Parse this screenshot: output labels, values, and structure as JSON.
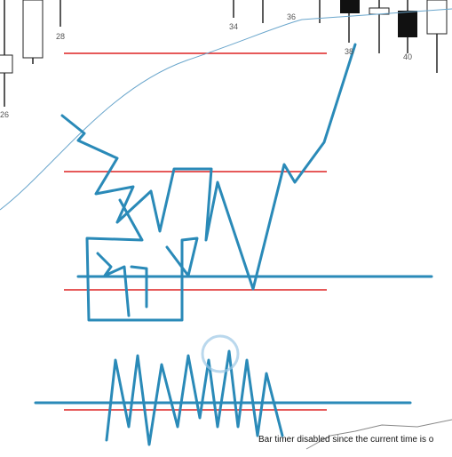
{
  "labels": [
    "26",
    "28",
    "34",
    "36",
    "38",
    "40"
  ],
  "status": "Bar timer disabled since the current time is o"
}
